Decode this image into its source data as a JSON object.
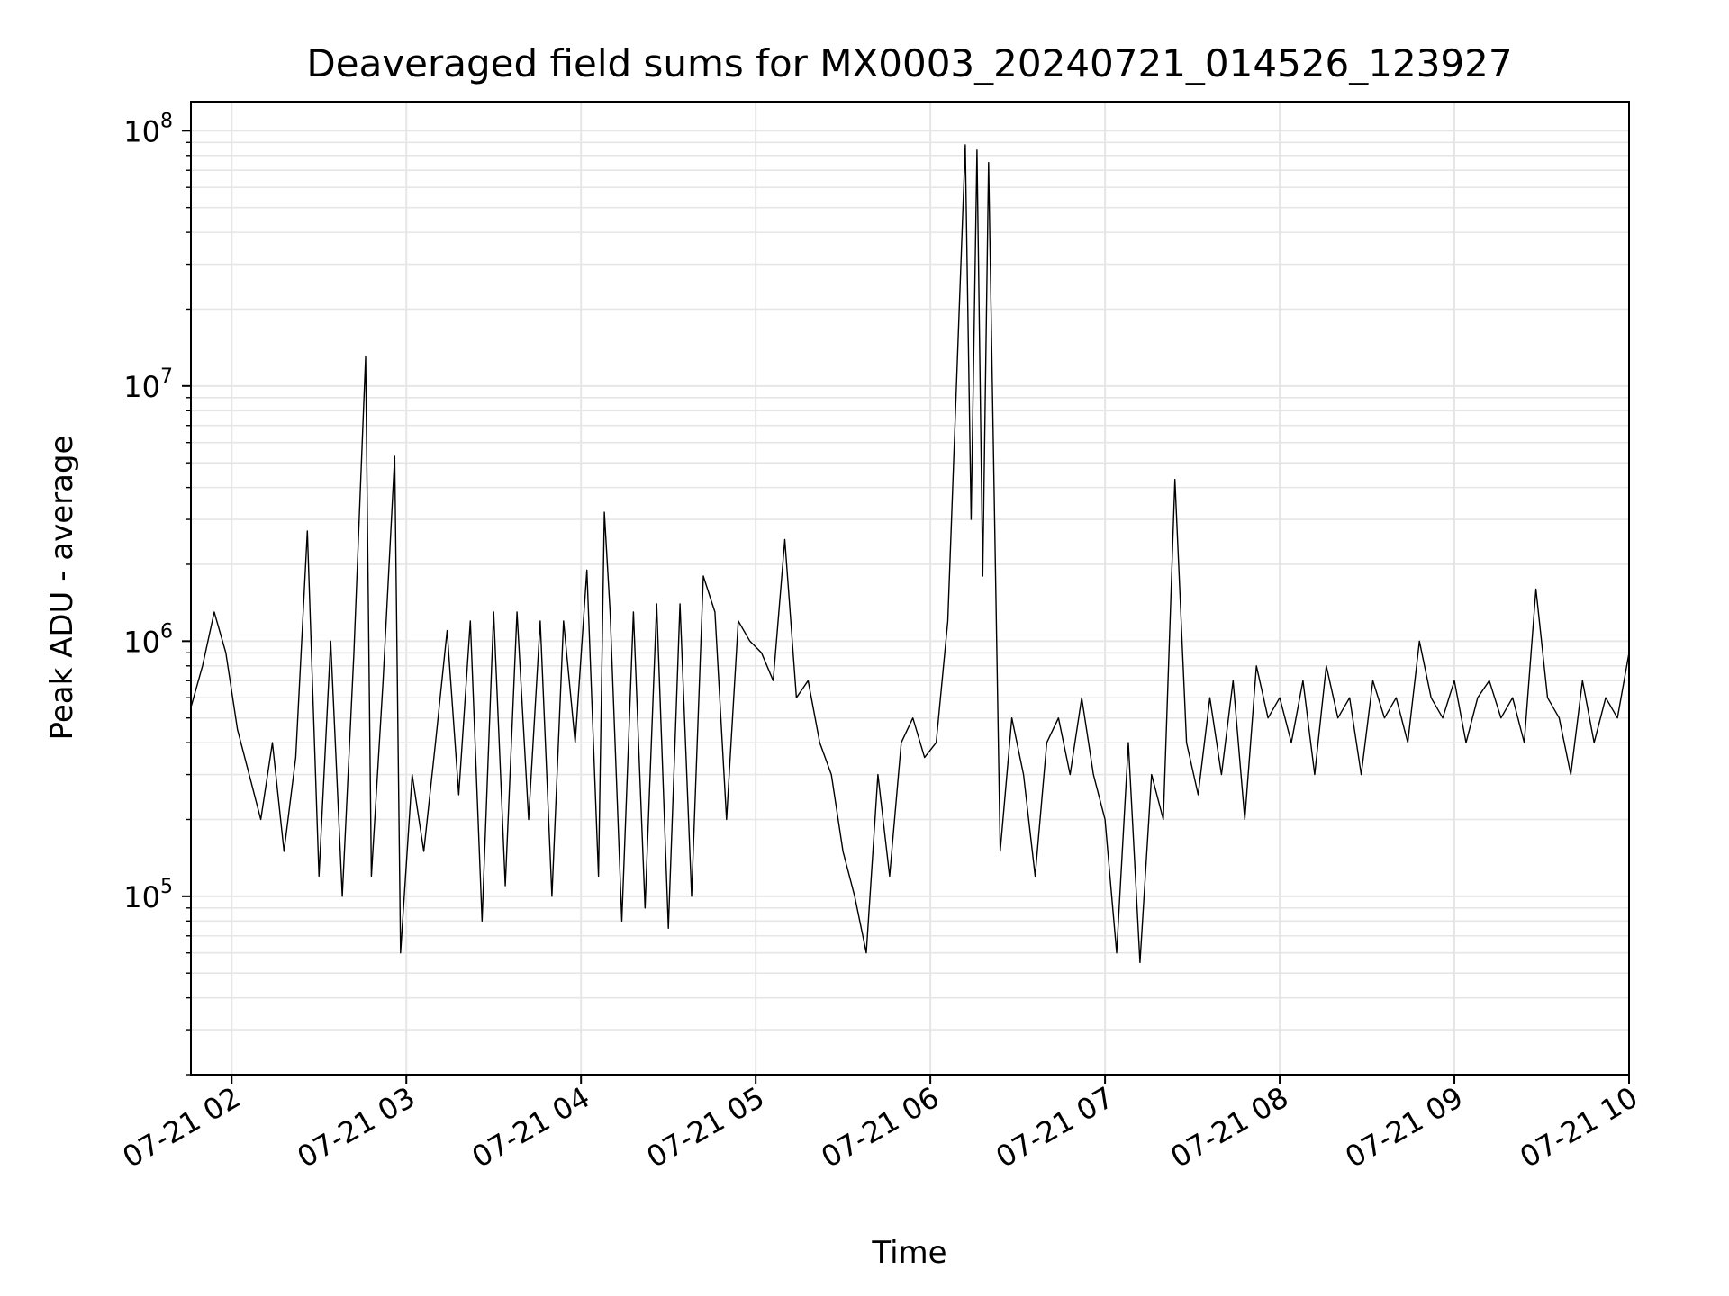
{
  "chart_data": {
    "type": "line",
    "title": "Deaveraged field sums for MX0003_20240721_014526_123927",
    "xlabel": "Time",
    "ylabel": "Peak ADU - average",
    "yscale": "log",
    "ylim": [
      20000,
      130000000
    ],
    "xlim": [
      "2024-07-21 01:46",
      "2024-07-21 10:00"
    ],
    "grid": true,
    "x_tick_labels": [
      "07-21 02",
      "07-21 03",
      "07-21 04",
      "07-21 05",
      "07-21 06",
      "07-21 07",
      "07-21 08",
      "07-21 09",
      "07-21 10"
    ],
    "x_ticks": [
      "2024-07-21 02:00",
      "2024-07-21 03:00",
      "2024-07-21 04:00",
      "2024-07-21 05:00",
      "2024-07-21 06:00",
      "2024-07-21 07:00",
      "2024-07-21 08:00",
      "2024-07-21 09:00",
      "2024-07-21 10:00"
    ],
    "y_ticks": [
      {
        "value": 100000,
        "base": "10",
        "exp": "5"
      },
      {
        "value": 1000000,
        "base": "10",
        "exp": "6"
      },
      {
        "value": 10000000,
        "base": "10",
        "exp": "7"
      },
      {
        "value": 100000000,
        "base": "10",
        "exp": "8"
      }
    ],
    "line_color": "#000000",
    "grid_color": "#e6e6e6",
    "series": [
      {
        "x": [
          "2024-07-21 01:46",
          "2024-07-21 01:50",
          "2024-07-21 01:54",
          "2024-07-21 01:58",
          "2024-07-21 02:02",
          "2024-07-21 02:06",
          "2024-07-21 02:10",
          "2024-07-21 02:14",
          "2024-07-21 02:18",
          "2024-07-21 02:22",
          "2024-07-21 02:26",
          "2024-07-21 02:30",
          "2024-07-21 02:34",
          "2024-07-21 02:38",
          "2024-07-21 02:42",
          "2024-07-21 02:46",
          "2024-07-21 02:48",
          "2024-07-21 02:52",
          "2024-07-21 02:56",
          "2024-07-21 02:58",
          "2024-07-21 03:02",
          "2024-07-21 03:06",
          "2024-07-21 03:10",
          "2024-07-21 03:14",
          "2024-07-21 03:18",
          "2024-07-21 03:22",
          "2024-07-21 03:26",
          "2024-07-21 03:30",
          "2024-07-21 03:34",
          "2024-07-21 03:38",
          "2024-07-21 03:42",
          "2024-07-21 03:46",
          "2024-07-21 03:50",
          "2024-07-21 03:54",
          "2024-07-21 03:58",
          "2024-07-21 04:02",
          "2024-07-21 04:06",
          "2024-07-21 04:08",
          "2024-07-21 04:10",
          "2024-07-21 04:14",
          "2024-07-21 04:18",
          "2024-07-21 04:22",
          "2024-07-21 04:26",
          "2024-07-21 04:30",
          "2024-07-21 04:34",
          "2024-07-21 04:38",
          "2024-07-21 04:42",
          "2024-07-21 04:46",
          "2024-07-21 04:50",
          "2024-07-21 04:54",
          "2024-07-21 04:58",
          "2024-07-21 05:02",
          "2024-07-21 05:06",
          "2024-07-21 05:10",
          "2024-07-21 05:14",
          "2024-07-21 05:18",
          "2024-07-21 05:22",
          "2024-07-21 05:26",
          "2024-07-21 05:30",
          "2024-07-21 05:34",
          "2024-07-21 05:38",
          "2024-07-21 05:42",
          "2024-07-21 05:46",
          "2024-07-21 05:50",
          "2024-07-21 05:54",
          "2024-07-21 05:58",
          "2024-07-21 06:02",
          "2024-07-21 06:06",
          "2024-07-21 06:12",
          "2024-07-21 06:14",
          "2024-07-21 06:16",
          "2024-07-21 06:18",
          "2024-07-21 06:20",
          "2024-07-21 06:24",
          "2024-07-21 06:28",
          "2024-07-21 06:32",
          "2024-07-21 06:36",
          "2024-07-21 06:40",
          "2024-07-21 06:44",
          "2024-07-21 06:48",
          "2024-07-21 06:52",
          "2024-07-21 06:56",
          "2024-07-21 07:00",
          "2024-07-21 07:04",
          "2024-07-21 07:08",
          "2024-07-21 07:12",
          "2024-07-21 07:16",
          "2024-07-21 07:20",
          "2024-07-21 07:24",
          "2024-07-21 07:28",
          "2024-07-21 07:32",
          "2024-07-21 07:36",
          "2024-07-21 07:40",
          "2024-07-21 07:44",
          "2024-07-21 07:48",
          "2024-07-21 07:52",
          "2024-07-21 07:56",
          "2024-07-21 08:00",
          "2024-07-21 08:04",
          "2024-07-21 08:08",
          "2024-07-21 08:12",
          "2024-07-21 08:16",
          "2024-07-21 08:20",
          "2024-07-21 08:24",
          "2024-07-21 08:28",
          "2024-07-21 08:32",
          "2024-07-21 08:36",
          "2024-07-21 08:40",
          "2024-07-21 08:44",
          "2024-07-21 08:48",
          "2024-07-21 08:52",
          "2024-07-21 08:56",
          "2024-07-21 09:00",
          "2024-07-21 09:04",
          "2024-07-21 09:08",
          "2024-07-21 09:12",
          "2024-07-21 09:16",
          "2024-07-21 09:20",
          "2024-07-21 09:24",
          "2024-07-21 09:28",
          "2024-07-21 09:32",
          "2024-07-21 09:36",
          "2024-07-21 09:40",
          "2024-07-21 09:44",
          "2024-07-21 09:48",
          "2024-07-21 09:52",
          "2024-07-21 09:56",
          "2024-07-21 10:00"
        ],
        "y": [
          550000,
          800000,
          1300000,
          900000,
          450000,
          300000,
          200000,
          400000,
          150000,
          350000,
          2700000,
          120000,
          1000000,
          100000,
          900000,
          13000000,
          120000,
          700000,
          5300000,
          60000,
          300000,
          150000,
          400000,
          1100000,
          250000,
          1200000,
          80000,
          1300000,
          110000,
          1300000,
          200000,
          1200000,
          100000,
          1200000,
          400000,
          1900000,
          120000,
          3200000,
          1300000,
          80000,
          1300000,
          90000,
          1400000,
          75000,
          1400000,
          100000,
          1800000,
          1300000,
          200000,
          1200000,
          1000000,
          900000,
          700000,
          2500000,
          600000,
          700000,
          400000,
          300000,
          150000,
          100000,
          60000,
          300000,
          120000,
          400000,
          500000,
          350000,
          400000,
          1200000,
          88000000,
          3000000,
          84000000,
          1800000,
          75000000,
          150000,
          500000,
          300000,
          120000,
          400000,
          500000,
          300000,
          600000,
          300000,
          200000,
          60000,
          400000,
          55000,
          300000,
          200000,
          4300000,
          400000,
          250000,
          600000,
          300000,
          700000,
          200000,
          800000,
          500000,
          600000,
          400000,
          700000,
          300000,
          800000,
          500000,
          600000,
          300000,
          700000,
          500000,
          600000,
          400000,
          1000000,
          600000,
          500000,
          700000,
          400000,
          600000,
          700000,
          500000,
          600000,
          400000,
          1600000,
          600000,
          500000,
          300000,
          700000,
          400000,
          600000,
          500000,
          900000
        ]
      }
    ]
  }
}
